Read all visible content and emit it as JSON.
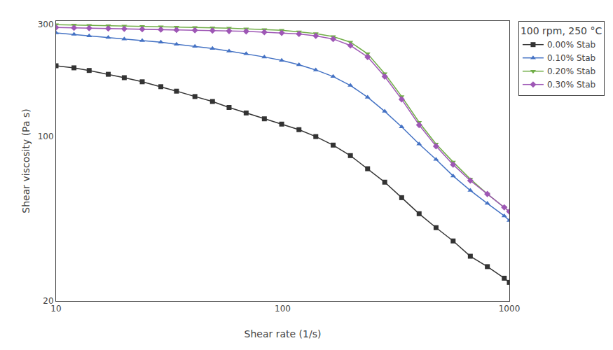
{
  "chart_data": {
    "type": "line",
    "xlabel": "Shear rate (1/s)",
    "ylabel": "Shear viscosity (Pa s)",
    "legend_title": "100 rpm, 250 °C",
    "x": [
      10,
      12,
      14,
      17,
      20,
      24,
      29,
      34,
      41,
      49,
      58,
      69,
      83,
      99,
      118,
      140,
      167,
      199,
      237,
      282,
      335,
      400,
      475,
      565,
      673,
      800,
      950,
      1000
    ],
    "series": [
      {
        "name": "0.00% Stab",
        "color": "#333333",
        "marker": "square",
        "values": [
          200,
          196,
          191,
          184,
          178,
          171,
          163,
          156,
          148,
          141,
          133,
          126,
          119,
          113,
          107,
          100,
          92,
          83,
          73,
          64,
          55,
          47,
          41,
          36,
          31,
          28,
          25,
          24
        ]
      },
      {
        "name": "0.10% Stab",
        "color": "#4472c4",
        "marker": "triangle-up",
        "values": [
          276,
          272,
          268,
          264,
          260,
          256,
          252,
          247,
          242,
          237,
          231,
          225,
          218,
          211,
          202,
          192,
          180,
          165,
          147,
          128,
          110,
          93,
          80,
          68,
          59,
          52,
          46,
          44
        ]
      },
      {
        "name": "0.20% Stab",
        "color": "#70ad47",
        "marker": "triangle-down",
        "values": [
          299,
          298,
          297,
          296,
          295,
          294,
          293,
          292,
          291,
          290,
          289,
          287,
          285,
          283,
          279,
          274,
          266,
          252,
          225,
          185,
          148,
          115,
          93,
          78,
          66,
          57,
          50,
          48
        ]
      },
      {
        "name": "0.30% Stab",
        "color": "#9e57b5",
        "marker": "diamond",
        "values": [
          291,
          290,
          289,
          288,
          287,
          286,
          285,
          284,
          283,
          282,
          281,
          280,
          278,
          276,
          273,
          268,
          260,
          244,
          218,
          180,
          144,
          112,
          91,
          76,
          65,
          57,
          50,
          48
        ]
      }
    ],
    "xlim": [
      10,
      1000
    ],
    "ylim": [
      20,
      310
    ],
    "xticks": [
      10,
      100,
      1000
    ],
    "yticks": [
      20,
      100,
      300
    ],
    "log": true,
    "grid": false,
    "legend": "upper right"
  }
}
